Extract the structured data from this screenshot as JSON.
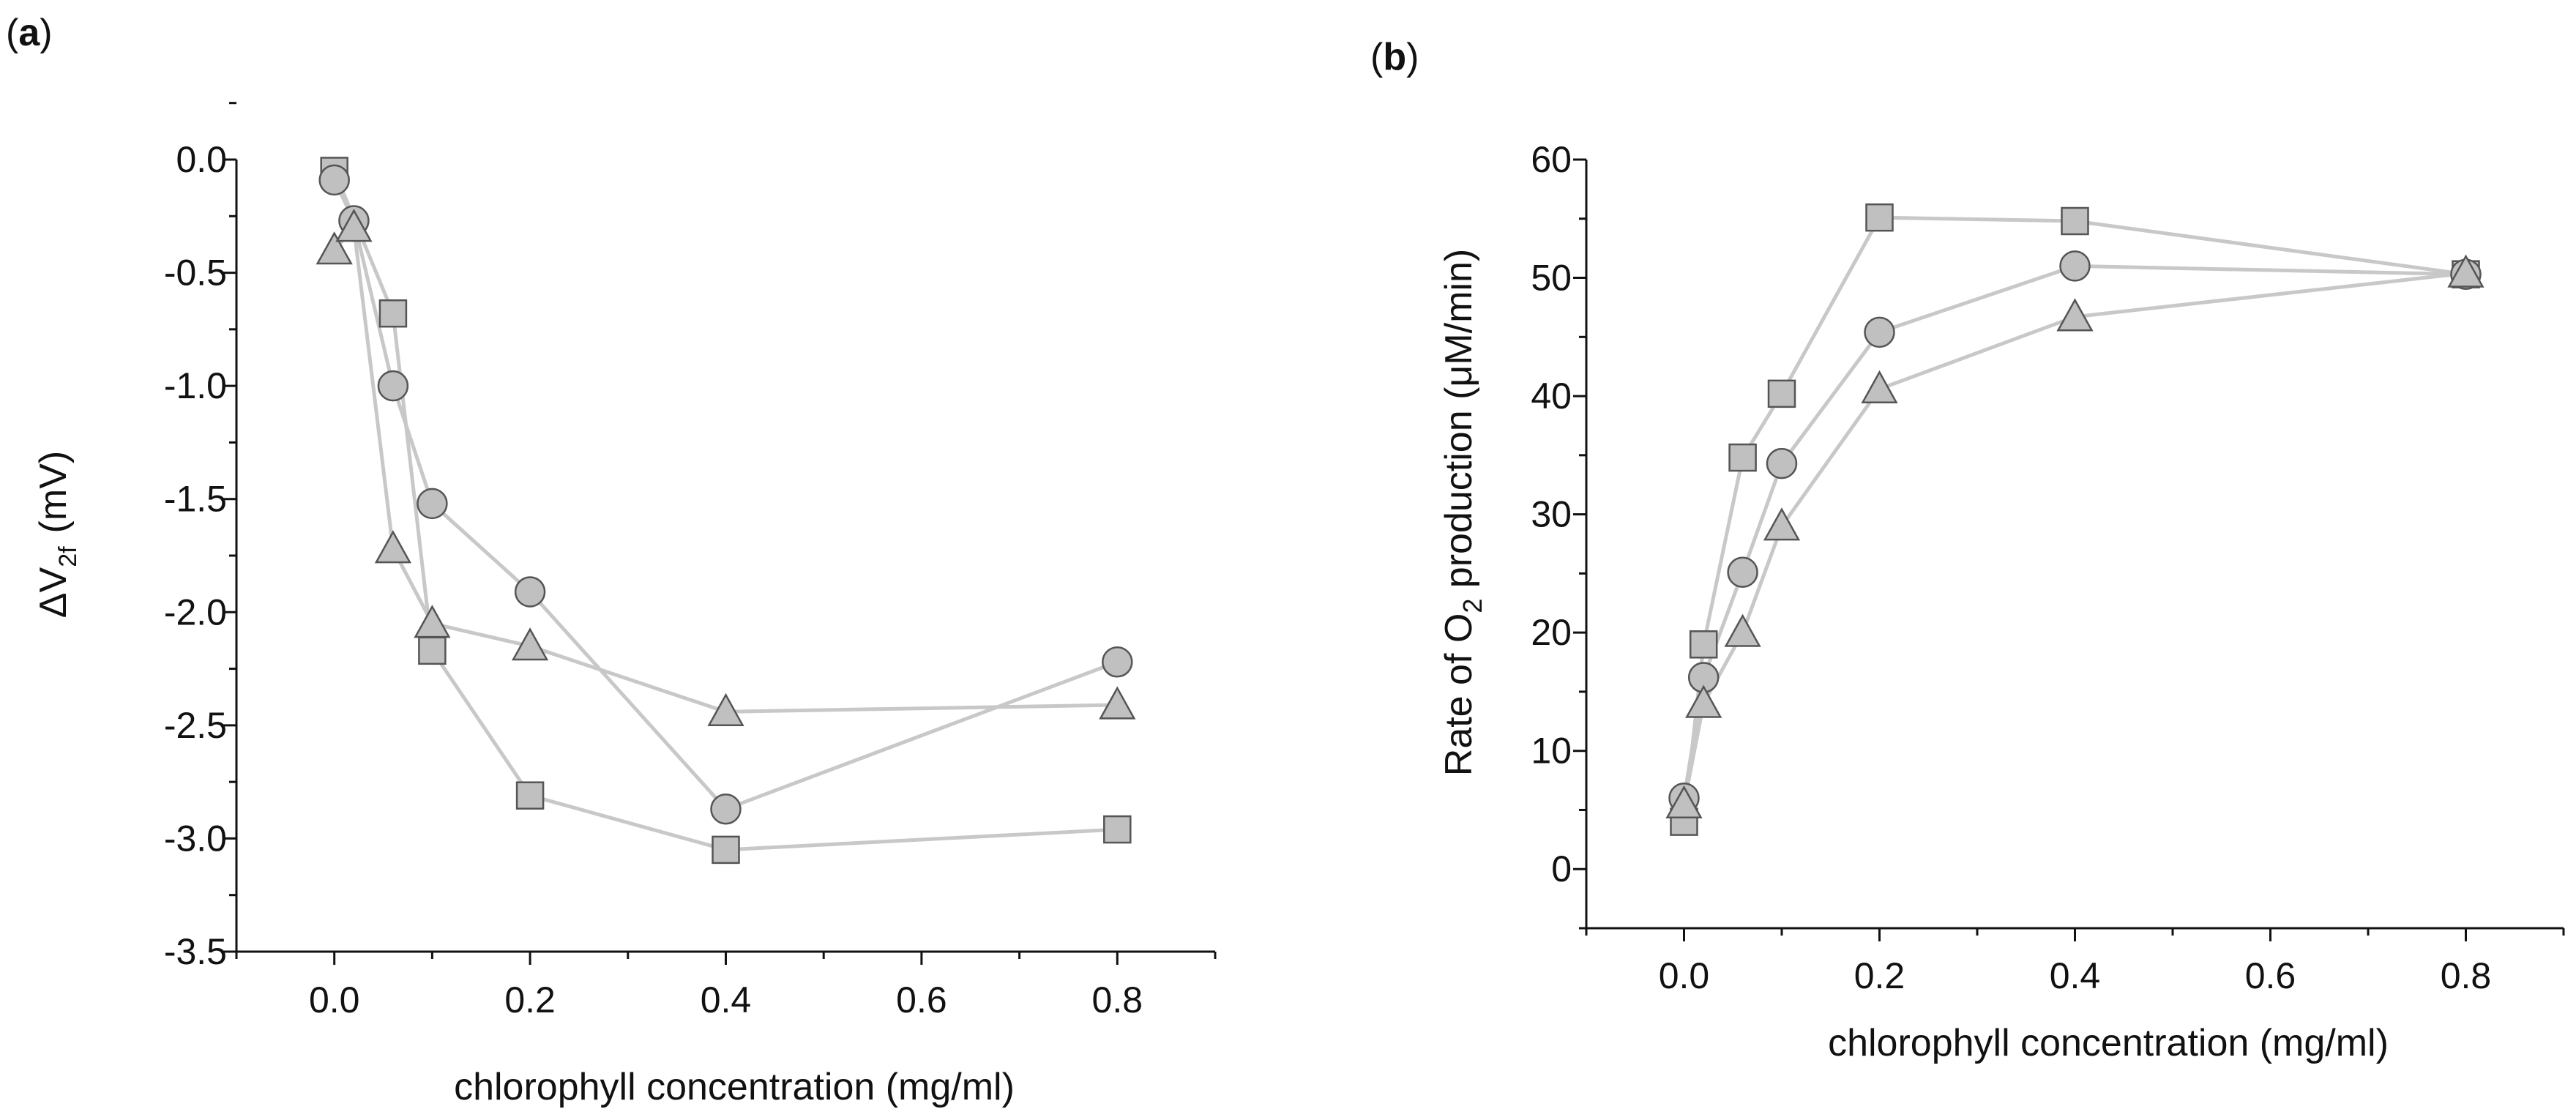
{
  "figure": {
    "panel_a_label": "a",
    "panel_b_label": "b"
  },
  "chart_data": [
    {
      "type": "scatter",
      "panel": "a",
      "xlabel": "chlorophyll concentration (mg/ml)",
      "ylabel_main": "ΔV",
      "ylabel_sub": "2f",
      "ylabel_unit": "(mV)",
      "xlim": [
        -0.1,
        0.9
      ],
      "ylim": [
        -3.5,
        0.0
      ],
      "xticks": [
        0.0,
        0.2,
        0.4,
        0.6,
        0.8
      ],
      "xtick_labels": [
        "0.0",
        "0.2",
        "0.4",
        "0.6",
        "0.8"
      ],
      "yticks": [
        0.0,
        -0.5,
        -1.0,
        -1.5,
        -2.0,
        -2.5,
        -3.0,
        -3.5
      ],
      "ytick_labels": [
        "0.0",
        "-0.5",
        "-1.0",
        "-1.5",
        "-2.0",
        "-2.5",
        "-3.0",
        "-3.5"
      ],
      "grid": false,
      "connected": true,
      "series": [
        {
          "marker": "square",
          "x": [
            0.0,
            0.06,
            0.1,
            0.2,
            0.4,
            0.8
          ],
          "y": [
            -0.05,
            -0.68,
            -2.17,
            -2.81,
            -3.05,
            -2.96
          ]
        },
        {
          "marker": "circle",
          "x": [
            0.0,
            0.02,
            0.06,
            0.1,
            0.2,
            0.4,
            0.8
          ],
          "y": [
            -0.09,
            -0.27,
            -1.0,
            -1.52,
            -1.91,
            -2.87,
            -2.22
          ]
        },
        {
          "marker": "triangle",
          "x": [
            0.0,
            0.02,
            0.06,
            0.1,
            0.2,
            0.4,
            0.8
          ],
          "y": [
            -0.4,
            -0.3,
            -1.72,
            -2.05,
            -2.15,
            -2.44,
            -2.41
          ]
        }
      ]
    },
    {
      "type": "scatter",
      "panel": "b",
      "xlabel": "chlorophyll concentration (mg/ml)",
      "ylabel_main": "Rate of O",
      "ylabel_sub": "2",
      "ylabel_rest": " production (μM/min)",
      "xlim": [
        -0.1,
        0.9
      ],
      "ylim": [
        -5,
        60
      ],
      "xticks": [
        0.0,
        0.2,
        0.4,
        0.6,
        0.8
      ],
      "xtick_labels": [
        "0.0",
        "0.2",
        "0.4",
        "0.6",
        "0.8"
      ],
      "yticks": [
        0,
        10,
        20,
        30,
        40,
        50,
        60
      ],
      "ytick_labels": [
        "0",
        "10",
        "20",
        "30",
        "40",
        "50",
        "60"
      ],
      "grid": false,
      "connected": true,
      "series": [
        {
          "marker": "square",
          "x": [
            0.0,
            0.02,
            0.06,
            0.1,
            0.2,
            0.4,
            0.8
          ],
          "y": [
            4,
            19,
            34.8,
            40.2,
            55.1,
            54.8,
            50.3
          ]
        },
        {
          "marker": "circle",
          "x": [
            0.0,
            0.02,
            0.06,
            0.1,
            0.2,
            0.4,
            0.8
          ],
          "y": [
            6,
            16.2,
            25.1,
            34.3,
            45.4,
            51,
            50.3
          ]
        },
        {
          "marker": "triangle",
          "x": [
            0.0,
            0.02,
            0.06,
            0.1,
            0.2,
            0.4,
            0.8
          ],
          "y": [
            5.5,
            14,
            20,
            29,
            40.6,
            46.7,
            50.4
          ]
        }
      ]
    }
  ]
}
